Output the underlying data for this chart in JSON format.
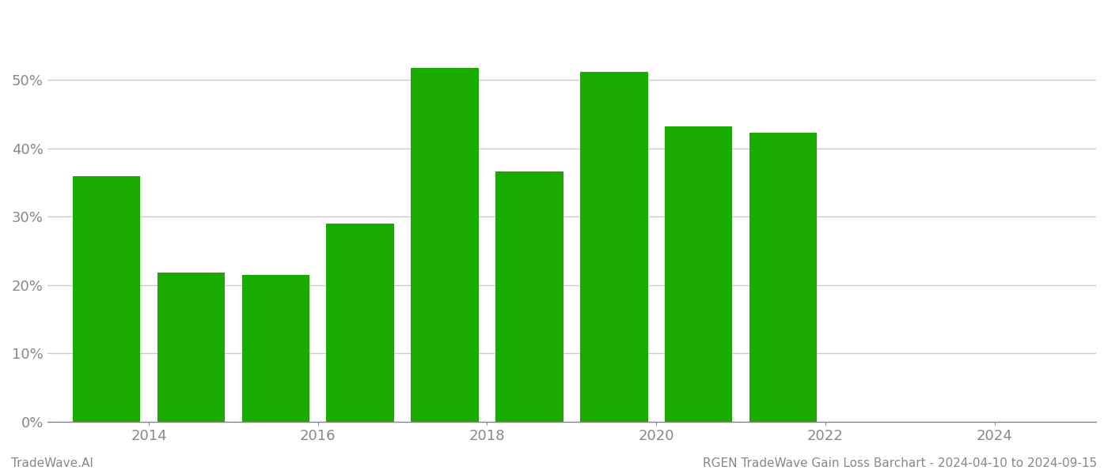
{
  "bar_positions": [
    2013.5,
    2014.5,
    2015.5,
    2016.5,
    2017.5,
    2018.5,
    2019.5,
    2020.5,
    2021.5
  ],
  "bar_values": [
    36.0,
    21.8,
    21.5,
    29.0,
    51.8,
    36.6,
    51.2,
    43.2,
    42.3
  ],
  "bar_color": "#1aab00",
  "background_color": "#ffffff",
  "grid_color": "#cccccc",
  "axis_label_color": "#888888",
  "footer_left": "TradeWave.AI",
  "footer_right": "RGEN TradeWave Gain Loss Barchart - 2024-04-10 to 2024-09-15",
  "footer_color": "#888888",
  "footer_fontsize": 11,
  "ylim": [
    0,
    60
  ],
  "ytick_values": [
    0,
    10,
    20,
    30,
    40,
    50
  ],
  "xtick_positions": [
    2014,
    2016,
    2018,
    2020,
    2022,
    2024
  ],
  "xtick_labels": [
    "2014",
    "2016",
    "2018",
    "2020",
    "2022",
    "2024"
  ],
  "xlim": [
    2012.8,
    2025.2
  ],
  "bar_width": 0.8
}
